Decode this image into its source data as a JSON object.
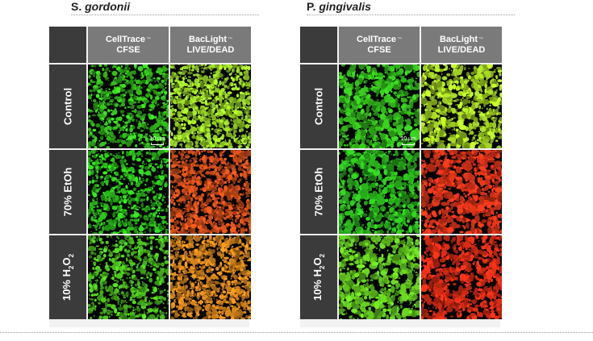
{
  "panels": [
    {
      "genus": "S.",
      "species": "gordonii",
      "columns": [
        {
          "line1": "CellTrace",
          "tm": "™",
          "line2": "CFSE"
        },
        {
          "line1": "BacLight",
          "tm": "™",
          "line2": "LIVE/DEAD"
        }
      ],
      "rows": [
        {
          "label": "Control"
        },
        {
          "label": "70% EtOh"
        },
        {
          "label_pre": "10% H",
          "sub1": "2",
          "label_mid": "O",
          "sub2": "2"
        }
      ],
      "scale_bar": "10 µm",
      "image_colors": [
        [
          "#38d21c",
          "#a4e628"
        ],
        [
          "#2fd31a",
          "#e2541a"
        ],
        [
          "#4fcc1e",
          "#e8901c"
        ]
      ]
    },
    {
      "genus": "P.",
      "species": "gingivalis",
      "columns": [
        {
          "line1": "CellTrace",
          "tm": "™",
          "line2": "CFSE"
        },
        {
          "line1": "BacLight",
          "tm": "™",
          "line2": "LIVE/DEAD"
        }
      ],
      "rows": [
        {
          "label": "Control"
        },
        {
          "label": "70% EtOh"
        },
        {
          "label_pre": "10% H",
          "sub1": "2",
          "label_mid": "O",
          "sub2": "2"
        }
      ],
      "scale_bar": "10 µm",
      "image_colors": [
        [
          "#36c81c",
          "#b4ea26"
        ],
        [
          "#2ec51e",
          "#f0381a"
        ],
        [
          "#68d420",
          "#f03016"
        ]
      ]
    }
  ]
}
